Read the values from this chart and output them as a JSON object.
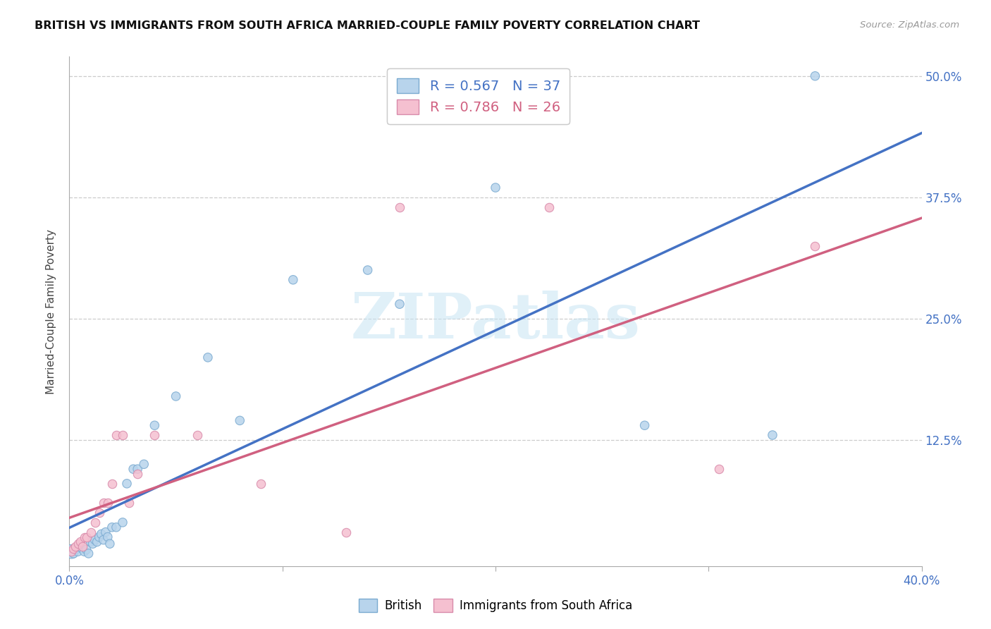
{
  "title": "BRITISH VS IMMIGRANTS FROM SOUTH AFRICA MARRIED-COUPLE FAMILY POVERTY CORRELATION CHART",
  "source": "Source: ZipAtlas.com",
  "ylabel": "Married-Couple Family Poverty",
  "ytick_values": [
    0.0,
    0.125,
    0.25,
    0.375,
    0.5
  ],
  "ytick_labels": [
    "",
    "12.5%",
    "25.0%",
    "37.5%",
    "50.0%"
  ],
  "xtick_values": [
    0.0,
    0.1,
    0.2,
    0.3,
    0.4
  ],
  "xtick_labels": [
    "0.0%",
    "",
    "",
    "",
    "40.0%"
  ],
  "xmin": 0.0,
  "xmax": 0.4,
  "ymin": -0.005,
  "ymax": 0.52,
  "british_R": "0.567",
  "british_N": "37",
  "sa_R": "0.786",
  "sa_N": "26",
  "legend_label1": "British",
  "legend_label2": "Immigrants from South Africa",
  "watermark": "ZIPatlas",
  "british_color": "#b8d4ec",
  "british_edge_color": "#7aaad0",
  "british_line_color": "#4472c4",
  "sa_color": "#f5c0d0",
  "sa_edge_color": "#d88aaa",
  "sa_line_color": "#d06080",
  "british_x": [
    0.001,
    0.002,
    0.003,
    0.004,
    0.005,
    0.006,
    0.007,
    0.008,
    0.009,
    0.01,
    0.011,
    0.012,
    0.013,
    0.014,
    0.015,
    0.016,
    0.017,
    0.018,
    0.019,
    0.02,
    0.022,
    0.025,
    0.027,
    0.03,
    0.032,
    0.035,
    0.04,
    0.05,
    0.065,
    0.08,
    0.105,
    0.14,
    0.155,
    0.2,
    0.27,
    0.33,
    0.35
  ],
  "british_y": [
    0.01,
    0.008,
    0.012,
    0.01,
    0.015,
    0.013,
    0.01,
    0.012,
    0.008,
    0.02,
    0.018,
    0.022,
    0.02,
    0.025,
    0.028,
    0.022,
    0.03,
    0.025,
    0.018,
    0.035,
    0.035,
    0.04,
    0.08,
    0.095,
    0.095,
    0.1,
    0.14,
    0.17,
    0.21,
    0.145,
    0.29,
    0.3,
    0.265,
    0.385,
    0.14,
    0.13,
    0.5
  ],
  "british_sizes": [
    200,
    80,
    80,
    80,
    80,
    80,
    80,
    80,
    80,
    80,
    80,
    80,
    80,
    80,
    80,
    80,
    80,
    80,
    80,
    80,
    80,
    80,
    80,
    80,
    80,
    80,
    80,
    80,
    80,
    80,
    80,
    80,
    80,
    80,
    80,
    80,
    80
  ],
  "sa_x": [
    0.001,
    0.002,
    0.003,
    0.004,
    0.005,
    0.006,
    0.007,
    0.008,
    0.01,
    0.012,
    0.014,
    0.016,
    0.018,
    0.02,
    0.022,
    0.025,
    0.028,
    0.032,
    0.04,
    0.06,
    0.09,
    0.13,
    0.155,
    0.225,
    0.305,
    0.35
  ],
  "sa_y": [
    0.01,
    0.013,
    0.015,
    0.018,
    0.02,
    0.015,
    0.025,
    0.025,
    0.03,
    0.04,
    0.05,
    0.06,
    0.06,
    0.08,
    0.13,
    0.13,
    0.06,
    0.09,
    0.13,
    0.13,
    0.08,
    0.03,
    0.365,
    0.365,
    0.095,
    0.325
  ]
}
